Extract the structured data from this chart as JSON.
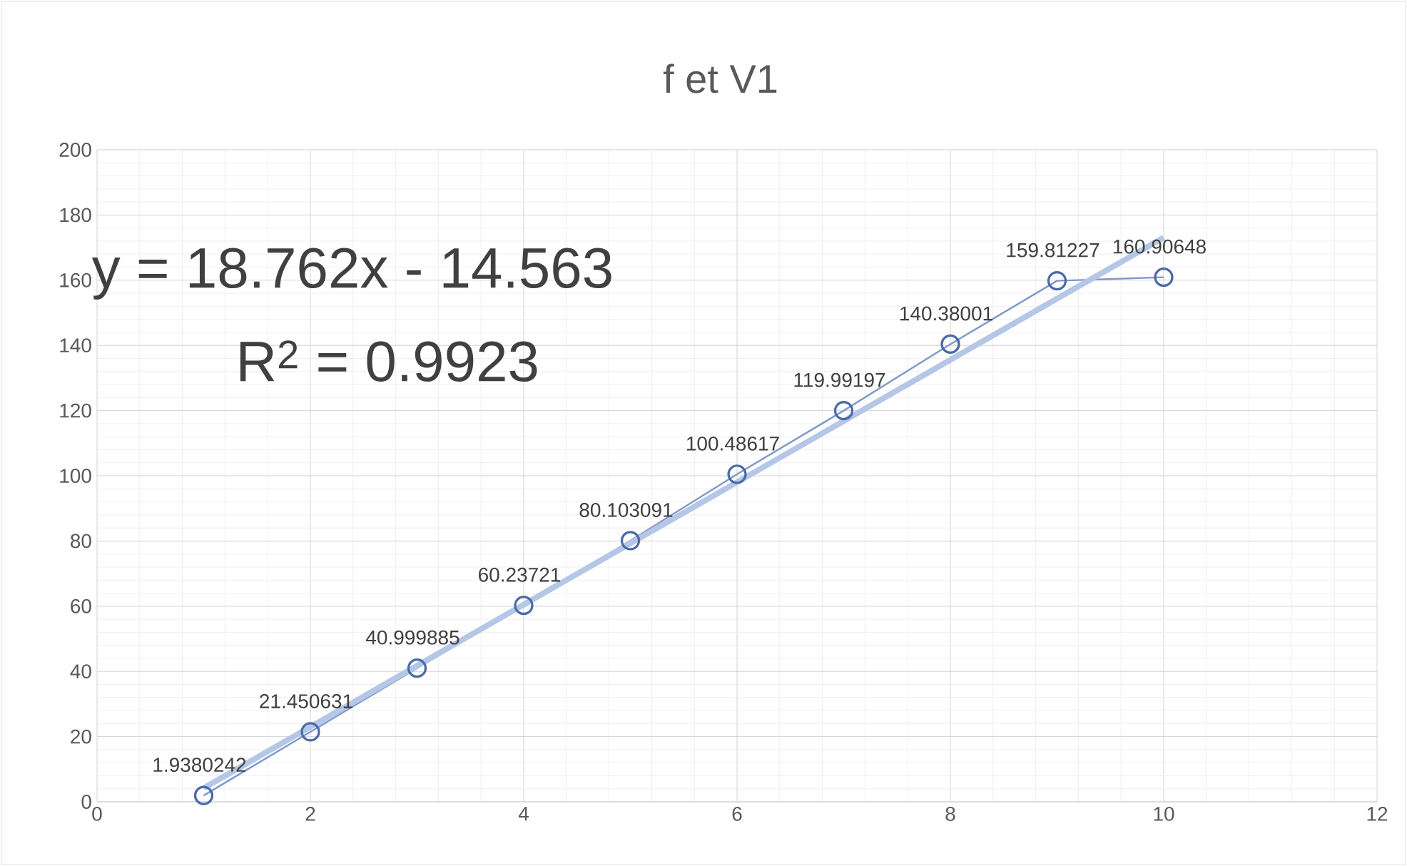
{
  "chart_data": {
    "type": "line",
    "title": "f et V1",
    "xlim": [
      0,
      12
    ],
    "xticks": [
      0,
      2,
      4,
      6,
      8,
      10,
      12
    ],
    "ylim": [
      0,
      200
    ],
    "yticks": [
      0,
      20,
      40,
      60,
      80,
      100,
      120,
      140,
      160,
      180,
      200
    ],
    "grid": true,
    "marker": "circle",
    "line_style": "solid",
    "series": [
      {
        "color": "#7f98c8",
        "x": [
          1,
          2,
          3,
          4,
          5,
          6,
          7,
          8,
          9,
          10
        ],
        "values": [
          1.9380242,
          21.450631,
          40.999885,
          60.23721,
          80.103091,
          100.48617,
          119.99197,
          140.38001,
          159.81227,
          160.90648
        ],
        "value_labels": [
          "1.9380242",
          "21.450631",
          "40.999885",
          "60.23721",
          "80.103091",
          "100.48617",
          "119.99197",
          "140.38001",
          "159.81227",
          "160.90648"
        ]
      },
      {
        "type": "line",
        "color": "#b4c7e7",
        "marker": "none",
        "x": [
          1,
          10
        ],
        "values": [
          4.2,
          173.1
        ]
      }
    ],
    "annotations": [
      "y = 18.762x - 14.563",
      "R$^{2}$ = 0.9923"
    ]
  }
}
